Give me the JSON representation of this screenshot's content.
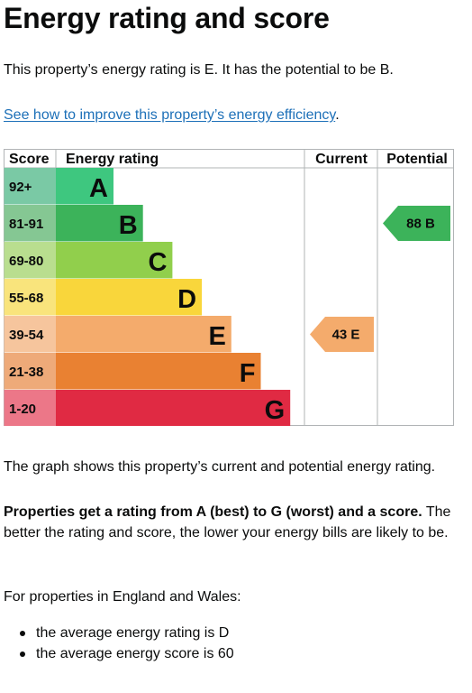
{
  "page": {
    "title": "Energy rating and score",
    "rating_text": "This property’s energy rating is E. It has the potential to be B.",
    "link_text": "See how to improve this property’s energy efficiency",
    "link_suffix": ".",
    "graph_text": "The graph shows this property’s current and potential energy rating.",
    "props_bold": "Properties get a rating from A (best) to G (worst) and a score.",
    "props_rest": " The better the rating and score, the lower your energy bills are likely to be.",
    "region_text": "For properties in England and Wales:",
    "bullets": [
      "the average energy rating is D",
      "the average energy score is 60"
    ]
  },
  "chart_data": {
    "type": "bar",
    "headers": {
      "score": "Score",
      "rating": "Energy rating",
      "current": "Current",
      "potential": "Potential"
    },
    "bands": [
      {
        "range": "92+",
        "letter": "A",
        "color": "#008054",
        "score_bg": "#7ac9a5",
        "bar": "#3ec77f"
      },
      {
        "range": "81-91",
        "letter": "B",
        "color": "#19b459",
        "score_bg": "#85c793",
        "bar": "#3cb35a"
      },
      {
        "range": "69-80",
        "letter": "C",
        "color": "#8dce46",
        "score_bg": "#b9de8f",
        "bar": "#91cf4c"
      },
      {
        "range": "55-68",
        "letter": "D",
        "color": "#ffd500",
        "score_bg": "#f9e47c",
        "bar": "#f9d63b"
      },
      {
        "range": "39-54",
        "letter": "E",
        "color": "#fcaa65",
        "score_bg": "#f6c59d",
        "bar": "#f4ab6c"
      },
      {
        "range": "21-38",
        "letter": "F",
        "color": "#ef8023",
        "score_bg": "#eeaa79",
        "bar": "#e98132"
      },
      {
        "range": "1-20",
        "letter": "G",
        "color": "#e9153b",
        "score_bg": "#ec7788",
        "bar": "#e02a43"
      }
    ],
    "current": {
      "score": 43,
      "band": "E",
      "label": "43 E",
      "color": "#f4ab6c"
    },
    "potential": {
      "score": 88,
      "band": "B",
      "label": "88 B",
      "color": "#3cb35a"
    }
  }
}
